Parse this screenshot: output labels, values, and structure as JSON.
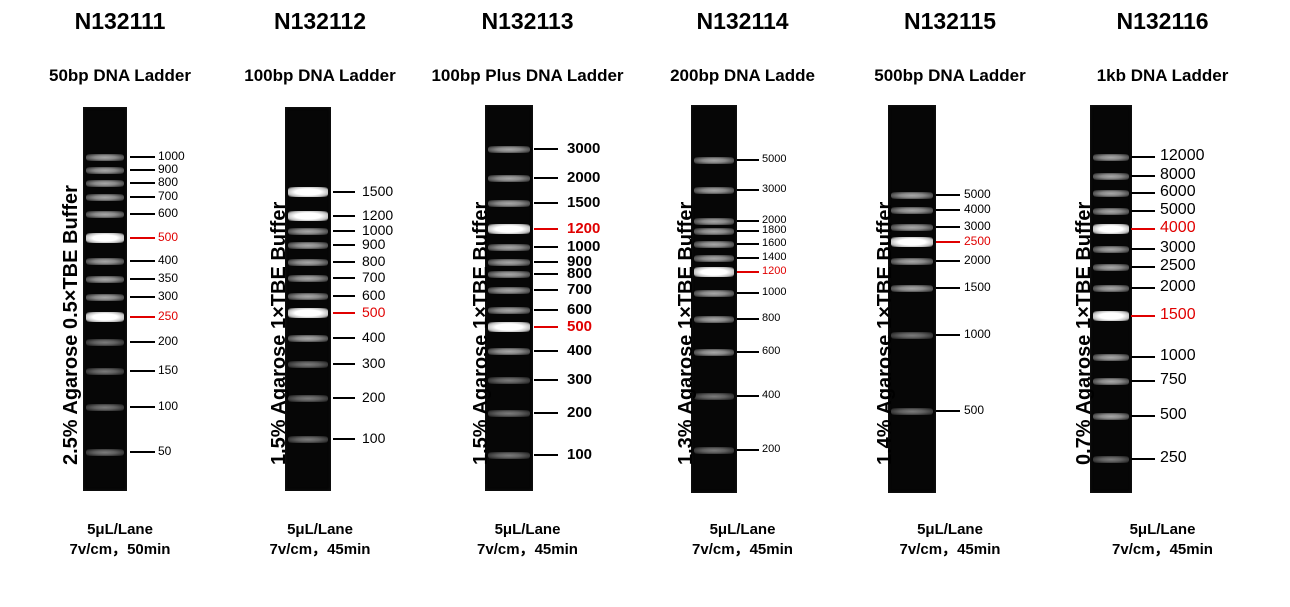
{
  "panels": [
    {
      "catalog": "N132111",
      "product": "50bp DNA Ladder",
      "conditions": "2.5% Agarose 0.5×TBE Buffer",
      "load": "5μL/Lane",
      "run": "7v/cm，50min",
      "markers": [
        {
          "label": "1000",
          "highlight": false
        },
        {
          "label": "900",
          "highlight": false
        },
        {
          "label": "800",
          "highlight": false
        },
        {
          "label": "700",
          "highlight": false
        },
        {
          "label": "600",
          "highlight": false
        },
        {
          "label": "500",
          "highlight": true
        },
        {
          "label": "400",
          "highlight": false
        },
        {
          "label": "350",
          "highlight": false
        },
        {
          "label": "300",
          "highlight": false
        },
        {
          "label": "250",
          "highlight": true
        },
        {
          "label": "200",
          "highlight": false
        },
        {
          "label": "150",
          "highlight": false
        },
        {
          "label": "100",
          "highlight": false
        },
        {
          "label": "50",
          "highlight": false
        }
      ]
    },
    {
      "catalog": "N132112",
      "product": "100bp DNA Ladder",
      "conditions": "1.5% Agarose 1×TBE Buffer",
      "load": "5μL/Lane",
      "run": "7v/cm，45min",
      "markers": [
        {
          "label": "1500",
          "highlight": false
        },
        {
          "label": "1200",
          "highlight": false
        },
        {
          "label": "1000",
          "highlight": false
        },
        {
          "label": "900",
          "highlight": false
        },
        {
          "label": "800",
          "highlight": false
        },
        {
          "label": "700",
          "highlight": false
        },
        {
          "label": "600",
          "highlight": false
        },
        {
          "label": "500",
          "highlight": true
        },
        {
          "label": "400",
          "highlight": false
        },
        {
          "label": "300",
          "highlight": false
        },
        {
          "label": "200",
          "highlight": false
        },
        {
          "label": "100",
          "highlight": false
        }
      ]
    },
    {
      "catalog": "N132113",
      "product": "100bp Plus DNA Ladder",
      "conditions": "1.5% Agarose 1×TBE Buffer",
      "load": "5μL/Lane",
      "run": "7v/cm，45min",
      "markers": [
        {
          "label": "3000",
          "highlight": false
        },
        {
          "label": "2000",
          "highlight": false
        },
        {
          "label": "1500",
          "highlight": false
        },
        {
          "label": "1200",
          "highlight": true
        },
        {
          "label": "1000",
          "highlight": false
        },
        {
          "label": "900",
          "highlight": false
        },
        {
          "label": "800",
          "highlight": false
        },
        {
          "label": "700",
          "highlight": false
        },
        {
          "label": "600",
          "highlight": false
        },
        {
          "label": "500",
          "highlight": true
        },
        {
          "label": "400",
          "highlight": false
        },
        {
          "label": "300",
          "highlight": false
        },
        {
          "label": "200",
          "highlight": false
        },
        {
          "label": "100",
          "highlight": false
        }
      ]
    },
    {
      "catalog": "N132114",
      "product": "200bp DNA Ladde",
      "conditions": "1.3% Agarose 1×TBE Buffer",
      "load": "5μL/Lane",
      "run": "7v/cm，45min",
      "markers": [
        {
          "label": "5000",
          "highlight": false
        },
        {
          "label": "3000",
          "highlight": false
        },
        {
          "label": "2000",
          "highlight": false
        },
        {
          "label": "1800",
          "highlight": false
        },
        {
          "label": "1600",
          "highlight": false
        },
        {
          "label": "1400",
          "highlight": false
        },
        {
          "label": "1200",
          "highlight": true
        },
        {
          "label": "1000",
          "highlight": false
        },
        {
          "label": "800",
          "highlight": false
        },
        {
          "label": "600",
          "highlight": false
        },
        {
          "label": "400",
          "highlight": false
        },
        {
          "label": "200",
          "highlight": false
        }
      ]
    },
    {
      "catalog": "N132115",
      "product": "500bp DNA Ladder",
      "conditions": "1.4% Agarose 1×TBE Buffer",
      "load": "5μL/Lane",
      "run": "7v/cm，45min",
      "markers": [
        {
          "label": "5000",
          "highlight": false
        },
        {
          "label": "4000",
          "highlight": false
        },
        {
          "label": "3000",
          "highlight": false
        },
        {
          "label": "2500",
          "highlight": true
        },
        {
          "label": "2000",
          "highlight": false
        },
        {
          "label": "1500",
          "highlight": false
        },
        {
          "label": "1000",
          "highlight": false
        },
        {
          "label": "500",
          "highlight": false
        }
      ]
    },
    {
      "catalog": "N132116",
      "product": "1kb DNA Ladder",
      "conditions": "0.7% Agarose 1×TBE Buffer",
      "load": "5μL/Lane",
      "run": "7v/cm，45min",
      "markers": [
        {
          "label": "12000",
          "highlight": false
        },
        {
          "label": "8000",
          "highlight": false
        },
        {
          "label": "6000",
          "highlight": false
        },
        {
          "label": "5000",
          "highlight": false
        },
        {
          "label": "4000",
          "highlight": true
        },
        {
          "label": "3000",
          "highlight": false
        },
        {
          "label": "2500",
          "highlight": false
        },
        {
          "label": "2000",
          "highlight": false
        },
        {
          "label": "1500",
          "highlight": true
        },
        {
          "label": "1000",
          "highlight": false
        },
        {
          "label": "750",
          "highlight": false
        },
        {
          "label": "500",
          "highlight": false
        },
        {
          "label": "250",
          "highlight": false
        }
      ]
    }
  ]
}
